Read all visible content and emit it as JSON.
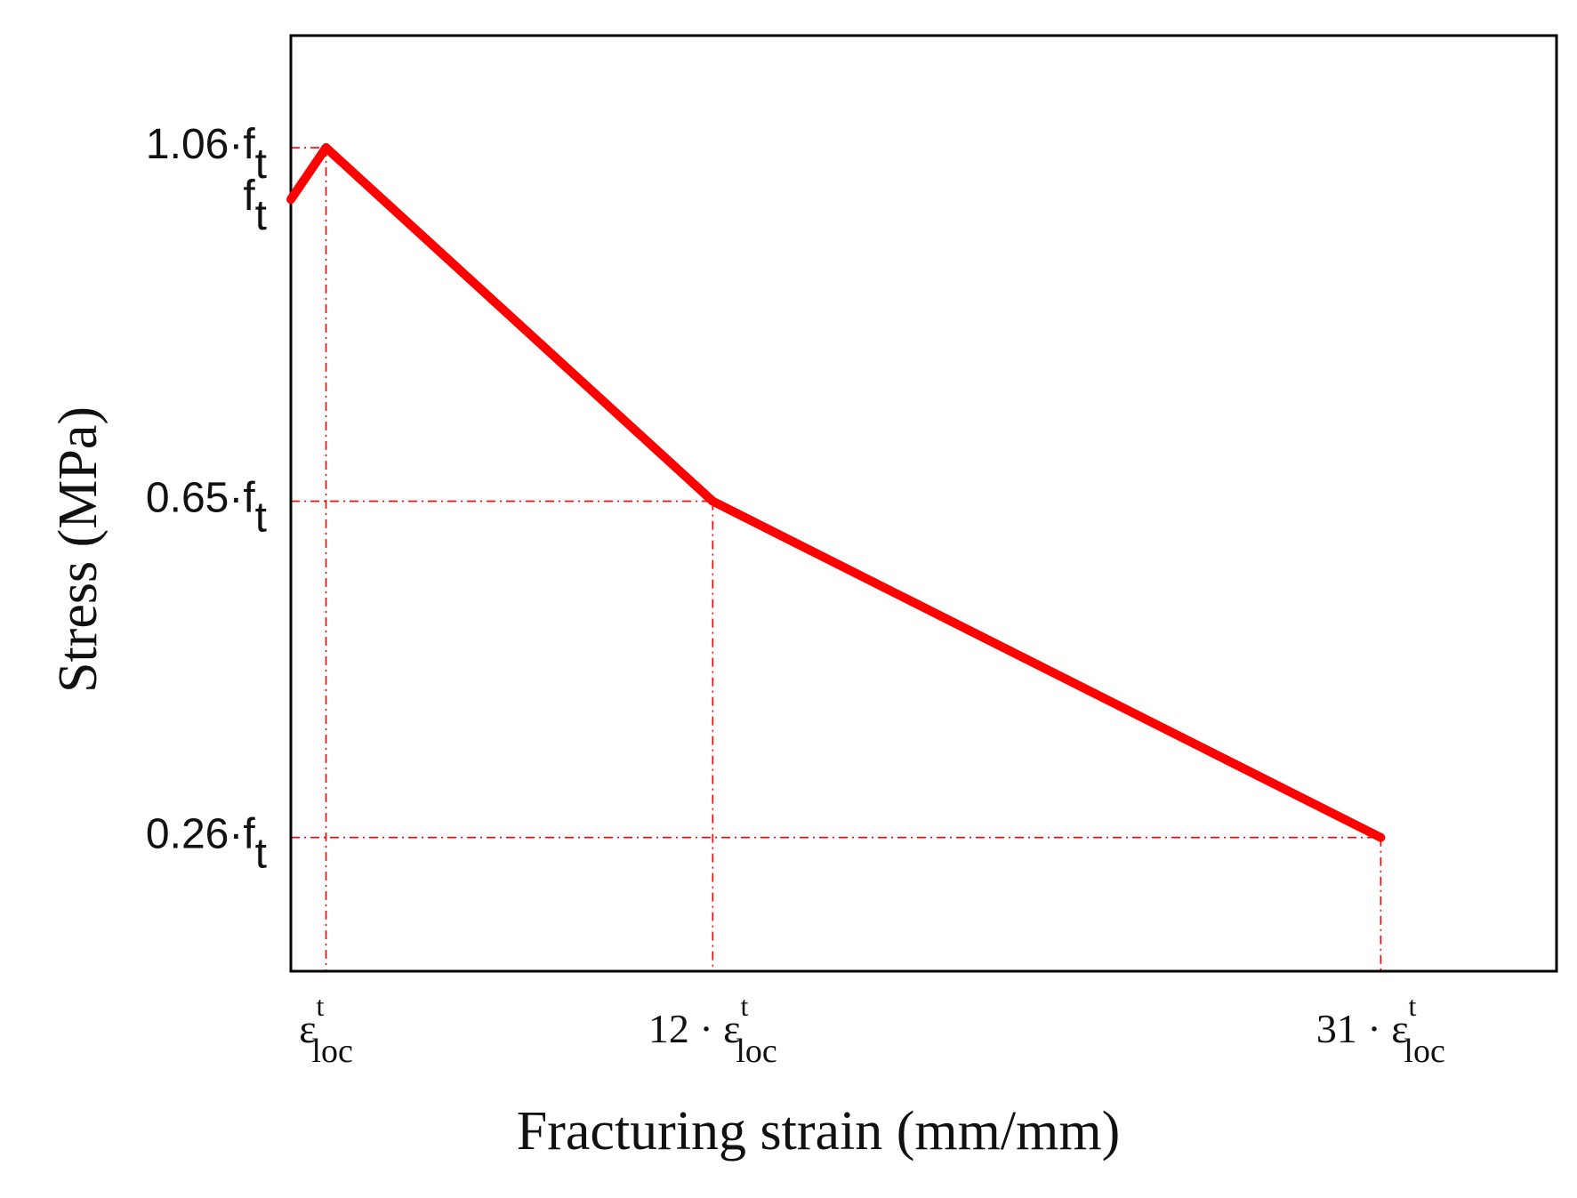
{
  "chart_data": {
    "type": "line",
    "xlabel": "Fracturing strain (mm/mm)",
    "ylabel": "Stress (MPa)",
    "x": [
      0,
      1,
      12,
      31
    ],
    "x_unit": "ε^t_loc",
    "series": [
      {
        "values": [
          1.0,
          1.06,
          0.65,
          0.26
        ],
        "color": "#ff0000"
      }
    ],
    "y_unit": "f_t",
    "xlim": [
      0,
      36
    ],
    "ylim": [
      0.105,
      1.19
    ],
    "x_ticks": [
      {
        "value": 1,
        "coef": "",
        "symbol": "ε",
        "sup": "t",
        "sub": "loc"
      },
      {
        "value": 12,
        "coef": "12",
        "symbol": "ε",
        "sup": "t",
        "sub": "loc"
      },
      {
        "value": 31,
        "coef": "31",
        "symbol": "ε",
        "sup": "t",
        "sub": "loc"
      }
    ],
    "y_ticks": [
      {
        "value": 1.06,
        "coef": "1.06",
        "symbol": "f",
        "sub": "t"
      },
      {
        "value": 1.0,
        "coef": "",
        "symbol": "f",
        "sub": "t"
      },
      {
        "value": 0.65,
        "coef": "0.65",
        "symbol": "f",
        "sub": "t"
      },
      {
        "value": 0.26,
        "coef": "0.26",
        "symbol": "f",
        "sub": "t"
      }
    ],
    "guide_lines": [
      {
        "x": 1,
        "y": 1.06
      },
      {
        "x": 12,
        "y": 0.65
      },
      {
        "x": 31,
        "y": 0.26
      }
    ],
    "grid": false,
    "legend": "none",
    "line_color": "#ff0000",
    "guide_color": "#ff0000"
  }
}
